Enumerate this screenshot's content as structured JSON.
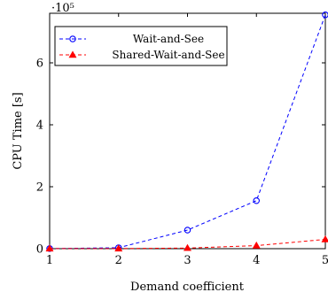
{
  "chart_data": {
    "type": "line",
    "xlabel": "Demand coefficient",
    "ylabel": "CPU Time [s]",
    "y_multiplier": "·10⁵",
    "x": [
      1,
      2,
      3,
      4,
      5
    ],
    "xlim": [
      1,
      5
    ],
    "ylim": [
      0,
      7.6
    ],
    "xticks": [
      1,
      2,
      3,
      4,
      5
    ],
    "yticks": [
      0,
      2,
      4,
      6
    ],
    "grid": false,
    "legend_position": "top-left",
    "series": [
      {
        "name": "Wait-and-See",
        "color": "#0000ff",
        "marker": "circle",
        "line": "dashed",
        "values": [
          0.003,
          0.03,
          0.6,
          1.55,
          7.55
        ]
      },
      {
        "name": "Shared-Wait-and-See",
        "color": "#ff0000",
        "marker": "triangle",
        "line": "dashed",
        "values": [
          0.002,
          0.005,
          0.02,
          0.1,
          0.3
        ]
      }
    ]
  }
}
